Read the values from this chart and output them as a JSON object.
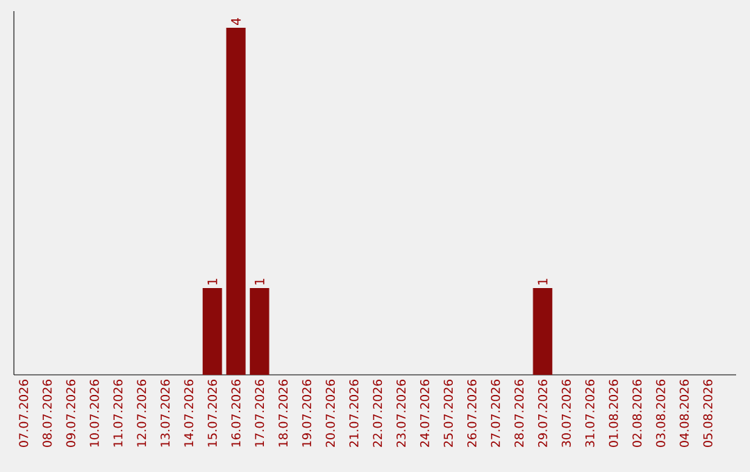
{
  "chart_data": {
    "type": "bar",
    "categories": [
      "07.07.2026",
      "08.07.2026",
      "09.07.2026",
      "10.07.2026",
      "11.07.2026",
      "12.07.2026",
      "13.07.2026",
      "14.07.2026",
      "15.07.2026",
      "16.07.2026",
      "17.07.2026",
      "18.07.2026",
      "19.07.2026",
      "20.07.2026",
      "21.07.2026",
      "22.07.2026",
      "23.07.2026",
      "24.07.2026",
      "25.07.2026",
      "26.07.2026",
      "27.07.2026",
      "28.07.2026",
      "29.07.2026",
      "30.07.2026",
      "31.07.2026",
      "01.08.2026",
      "02.08.2026",
      "03.08.2026",
      "04.08.2026",
      "05.08.2026"
    ],
    "values": [
      0,
      0,
      0,
      0,
      0,
      0,
      0,
      0,
      1,
      4,
      1,
      0,
      0,
      0,
      0,
      0,
      0,
      0,
      0,
      0,
      0,
      0,
      1,
      0,
      0,
      0,
      0,
      0,
      0,
      0
    ],
    "value_labels": [
      null,
      null,
      null,
      null,
      null,
      null,
      null,
      null,
      "1",
      "4",
      "1",
      null,
      null,
      null,
      null,
      null,
      null,
      null,
      null,
      null,
      null,
      null,
      "1",
      null,
      null,
      null,
      null,
      null,
      null,
      null
    ],
    "color": "#8b0a0a",
    "tick_labels": "x"
  }
}
